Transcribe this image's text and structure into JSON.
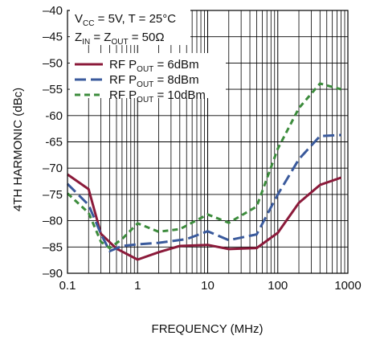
{
  "chart_data": {
    "type": "line",
    "title": "",
    "xlabel": "FREQUENCY (MHz)",
    "ylabel": "4TH HARMONIC (dBc)",
    "xscale": "log",
    "xlim": [
      0.1,
      1000
    ],
    "ylim": [
      -90,
      -40
    ],
    "x_ticks": [
      0.1,
      1,
      10,
      100,
      1000
    ],
    "x_tick_labels": [
      "0.1",
      "1",
      "10",
      "100",
      "1000"
    ],
    "y_ticks": [
      -40,
      -45,
      -50,
      -55,
      -60,
      -65,
      -70,
      -75,
      -80,
      -85,
      -90
    ],
    "y_tick_labels": [
      "–40",
      "–45",
      "–50",
      "–55",
      "-60",
      "-65",
      "–70",
      "–75",
      "–80",
      "–85",
      "–90"
    ],
    "grid": true,
    "conditions": {
      "line1": {
        "a": "V",
        "a_sub": "CC",
        "b": " = 5V, T = 25°C"
      },
      "line2": {
        "a": "Z",
        "a_sub": "IN",
        "b": " = Z",
        "b_sub": "OUT",
        "c": " = 50Ω"
      }
    },
    "legend_position": "top-left",
    "series": [
      {
        "name": "RF POUT = 6dBm",
        "label_prefix": "RF P",
        "label_sub": "OUT",
        "label_suffix": " = 6dBm",
        "color": "#8b1a3a",
        "dash": "solid",
        "points": [
          [
            0.1,
            -71.2
          ],
          [
            0.2,
            -74
          ],
          [
            0.3,
            -82.5
          ],
          [
            0.5,
            -85.3
          ],
          [
            1,
            -87.4
          ],
          [
            2,
            -86
          ],
          [
            4,
            -84.8
          ],
          [
            10,
            -84.6
          ],
          [
            20,
            -85.4
          ],
          [
            50,
            -85.2
          ],
          [
            100,
            -82.3
          ],
          [
            200,
            -76.6
          ],
          [
            400,
            -73.2
          ],
          [
            800,
            -71.8
          ]
        ]
      },
      {
        "name": "RF POUT = 8dBm",
        "label_prefix": "RF P",
        "label_sub": "OUT",
        "label_suffix": " = 8dBm",
        "color": "#3a5a9c",
        "dash": "long-dash",
        "points": [
          [
            0.1,
            -73
          ],
          [
            0.2,
            -77
          ],
          [
            0.3,
            -82.5
          ],
          [
            0.4,
            -85.8
          ],
          [
            0.6,
            -84.8
          ],
          [
            1,
            -84.5
          ],
          [
            2,
            -84.2
          ],
          [
            5,
            -83.5
          ],
          [
            10,
            -82
          ],
          [
            20,
            -83.7
          ],
          [
            50,
            -82.6
          ],
          [
            100,
            -75
          ],
          [
            200,
            -68.3
          ],
          [
            400,
            -63.9
          ],
          [
            800,
            -63.7
          ]
        ]
      },
      {
        "name": "RF POUT = 10dBm",
        "label_prefix": "RF P",
        "label_sub": "OUT",
        "label_suffix": " = 10dBm",
        "color": "#3c8c3c",
        "dash": "short-dash",
        "points": [
          [
            0.1,
            -74.8
          ],
          [
            0.2,
            -78.5
          ],
          [
            0.3,
            -84
          ],
          [
            0.4,
            -85.2
          ],
          [
            0.6,
            -83.5
          ],
          [
            1,
            -80.5
          ],
          [
            2,
            -82.1
          ],
          [
            4,
            -81.6
          ],
          [
            10,
            -78.8
          ],
          [
            20,
            -80.4
          ],
          [
            50,
            -77.3
          ],
          [
            100,
            -66.3
          ],
          [
            200,
            -58.6
          ],
          [
            400,
            -53.9
          ],
          [
            800,
            -55
          ]
        ]
      }
    ]
  }
}
